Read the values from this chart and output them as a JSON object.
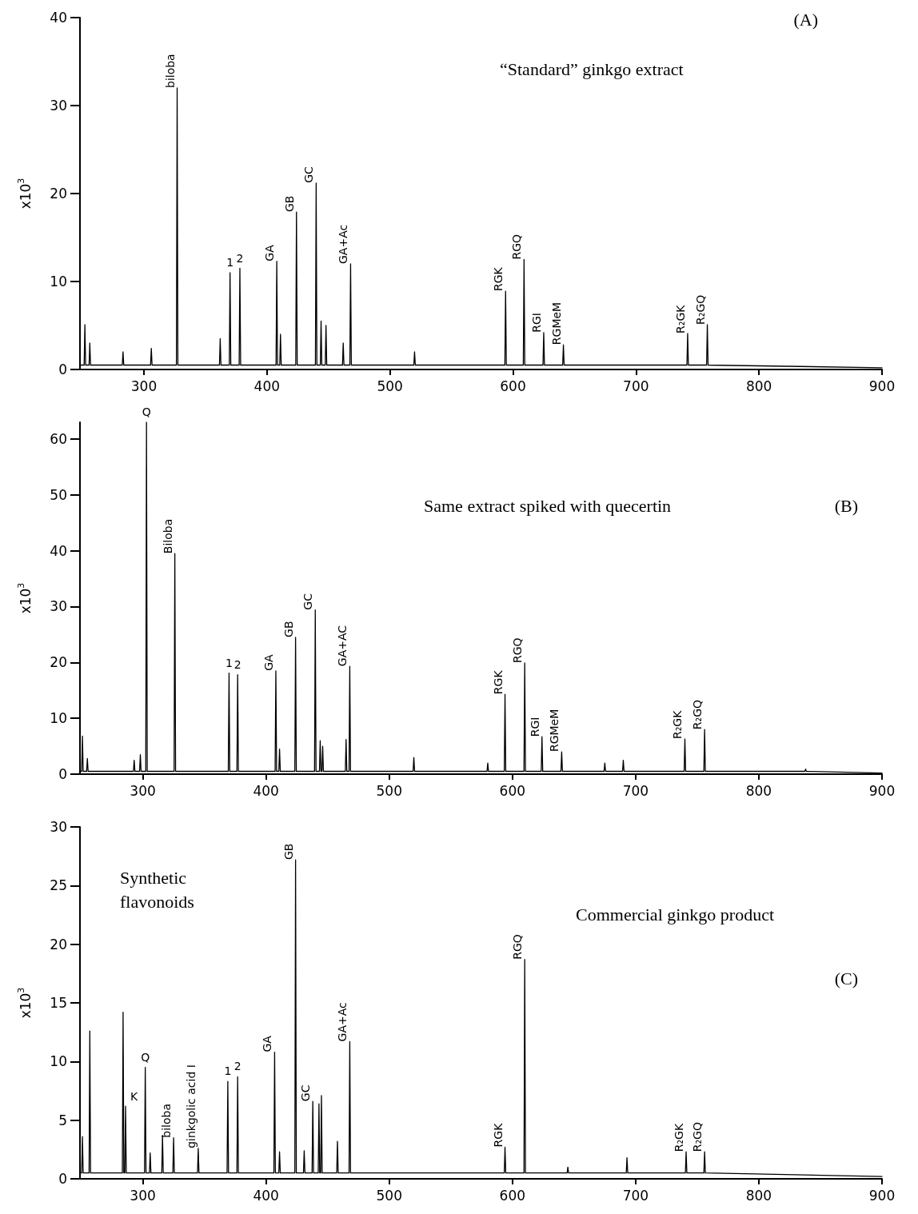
{
  "chart_data": [
    {
      "type": "line",
      "title": "(A)",
      "subtitle": "“Standard” ginkgo extract",
      "ylabel": "x10$^{3}$",
      "xlim": [
        248,
        900
      ],
      "xticks": [
        300,
        400,
        500,
        600,
        700,
        800,
        900
      ],
      "ylim": [
        0,
        40
      ],
      "yticks": [
        0,
        10,
        20,
        30,
        40
      ],
      "grid": false,
      "marker": "none",
      "series": [
        {
          "color": "#000000",
          "x": [
            248,
            251.4,
            252,
            252.6,
            255.4,
            256,
            256.6,
            282.4,
            283,
            283.6,
            305.4,
            306,
            306.6,
            326.4,
            327,
            327.6,
            361.4,
            362,
            362.6,
            369.4,
            370,
            370.6,
            377.4,
            378,
            378.6,
            407.4,
            408,
            408.6,
            410.4,
            411,
            411.6,
            423.4,
            424,
            424.6,
            439.4,
            440,
            440.6,
            443.4,
            444,
            444.6,
            447.4,
            448,
            448.6,
            461.4,
            462,
            462.6,
            467.4,
            468,
            468.6,
            519.4,
            520,
            520.6,
            593.4,
            594,
            594.6,
            608.4,
            609,
            609.6,
            624.4,
            625,
            625.6,
            640.4,
            641,
            641.6,
            741.4,
            742,
            742.6,
            757.4,
            758,
            758.6,
            900
          ],
          "values": [
            0.5,
            0.5,
            5.1,
            0.5,
            0.5,
            3,
            0.5,
            0.5,
            2,
            0.5,
            0.5,
            2.4,
            0.5,
            0.5,
            32,
            0.5,
            0.5,
            3.5,
            0.5,
            0.5,
            11,
            0.5,
            0.5,
            11.5,
            0.5,
            0.5,
            12.3,
            0.5,
            0.5,
            4,
            0.5,
            0.5,
            17.9,
            0.5,
            0.5,
            21.2,
            0.5,
            0.5,
            5.5,
            0.5,
            0.5,
            5,
            0.5,
            0.5,
            3,
            0.5,
            0.5,
            12,
            0.5,
            0.5,
            2,
            0.5,
            0.5,
            8.9,
            0.5,
            0.5,
            12.5,
            0.5,
            0.5,
            4.2,
            0.5,
            0.5,
            2.8,
            0.5,
            0.5,
            4.1,
            0.5,
            0.5,
            5.1,
            0.5,
            0.2
          ]
        }
      ],
      "annotations": [
        {
          "text": "biloba",
          "x": 327,
          "y": 32
        },
        {
          "text": "1",
          "x": 370,
          "y": 11
        },
        {
          "text": "2",
          "x": 378,
          "y": 11.5
        },
        {
          "text": "GA",
          "x": 408,
          "y": 12.3
        },
        {
          "text": "GB",
          "x": 424,
          "y": 17.9
        },
        {
          "text": "GC",
          "x": 440,
          "y": 21.2
        },
        {
          "text": "GA+Ac",
          "x": 468,
          "y": 12
        },
        {
          "text": "RGK",
          "x": 594,
          "y": 8.9
        },
        {
          "text": "RGQ",
          "x": 609,
          "y": 12.5
        },
        {
          "text": "RGI",
          "x": 625,
          "y": 4.2
        },
        {
          "text": "RGMeM",
          "x": 641,
          "y": 2.8
        },
        {
          "text": "R₂GK",
          "x": 742,
          "y": 4.1
        },
        {
          "text": "R₂GQ",
          "x": 758,
          "y": 5.1
        }
      ]
    },
    {
      "type": "line",
      "title": "(B)",
      "subtitle": "Same extract spiked with quecertin",
      "ylabel": "x10$^{3}$",
      "xlim": [
        249,
        900
      ],
      "xticks": [
        300,
        400,
        500,
        600,
        700,
        800,
        900
      ],
      "ylim": [
        0,
        63
      ],
      "yticks": [
        0,
        10,
        20,
        30,
        40,
        50,
        60
      ],
      "grid": false,
      "marker": "none",
      "series": [
        {
          "color": "#000000",
          "x": [
            249,
            250.4,
            251,
            251.6,
            254.4,
            255,
            255.6,
            292.4,
            293,
            293.6,
            297.4,
            298,
            298.6,
            302.4,
            303,
            303.6,
            325.4,
            326,
            326.6,
            369.4,
            370,
            370.6,
            376.4,
            377,
            377.6,
            407.4,
            408,
            408.6,
            410.4,
            411,
            411.6,
            423.4,
            424,
            424.6,
            439.4,
            440,
            440.6,
            443.4,
            444,
            444.6,
            445.4,
            446,
            446.6,
            464.4,
            465,
            465.6,
            467.4,
            468,
            468.6,
            519.4,
            520,
            520.6,
            579.4,
            580,
            580.6,
            593.4,
            594,
            594.6,
            609.4,
            610,
            610.6,
            623.4,
            624,
            624.6,
            639.4,
            640,
            640.6,
            674.4,
            675,
            675.6,
            689.4,
            690,
            690.6,
            739.4,
            740,
            740.6,
            755.4,
            756,
            756.6,
            837.4,
            838,
            838.6,
            900
          ],
          "values": [
            0.5,
            0.5,
            6.8,
            0.5,
            0.5,
            2.8,
            0.5,
            0.5,
            2.5,
            0.5,
            0.5,
            3.5,
            0.5,
            0.5,
            63,
            0.5,
            0.5,
            39.5,
            0.5,
            0.5,
            18.1,
            0.5,
            0.5,
            17.8,
            0.5,
            0.5,
            18.5,
            0.5,
            0.5,
            4.5,
            0.5,
            0.5,
            24.5,
            0.5,
            0.5,
            29.4,
            0.5,
            0.5,
            6,
            0.5,
            0.5,
            5,
            0.5,
            0.5,
            6.2,
            0.5,
            0.5,
            19.3,
            0.5,
            0.5,
            3,
            0.5,
            0.5,
            2,
            0.5,
            0.5,
            14.3,
            0.5,
            0.5,
            19.9,
            0.5,
            0.5,
            6.7,
            0.5,
            0.5,
            4,
            0.5,
            0.5,
            2,
            0.5,
            0.5,
            2.5,
            0.5,
            0.5,
            6.3,
            0.5,
            0.5,
            8,
            0.5,
            0.5,
            0.9,
            0.5,
            0.2
          ]
        }
      ],
      "annotations": [
        {
          "text": "Q",
          "x": 303,
          "y": 63
        },
        {
          "text": "Biloba",
          "x": 326,
          "y": 39.5
        },
        {
          "text": "1",
          "x": 370,
          "y": 18.1
        },
        {
          "text": "2",
          "x": 377,
          "y": 17.8
        },
        {
          "text": "GA",
          "x": 408,
          "y": 18.5
        },
        {
          "text": "GB",
          "x": 424,
          "y": 24.5
        },
        {
          "text": "GC",
          "x": 440,
          "y": 29.4
        },
        {
          "text": "GA+AC",
          "x": 468,
          "y": 19.3
        },
        {
          "text": "RGK",
          "x": 594,
          "y": 14.3
        },
        {
          "text": "RGQ",
          "x": 610,
          "y": 19.9
        },
        {
          "text": "RGI",
          "x": 624,
          "y": 6.7
        },
        {
          "text": "RGMeM",
          "x": 640,
          "y": 4
        },
        {
          "text": "R₂GK",
          "x": 740,
          "y": 6.3
        },
        {
          "text": "R₂GQ",
          "x": 756,
          "y": 8
        }
      ]
    },
    {
      "type": "line",
      "title": "(C)",
      "subtitle": "Commercial ginkgo product",
      "ylabel": "x10$^{3}$",
      "xlim": [
        249,
        900
      ],
      "xticks": [
        300,
        400,
        500,
        600,
        700,
        800,
        900
      ],
      "ylim": [
        0,
        30
      ],
      "yticks": [
        0,
        5,
        10,
        15,
        20,
        25,
        30
      ],
      "grid": false,
      "marker": "none",
      "series": [
        {
          "color": "#000000",
          "x": [
            249,
            250.4,
            251,
            251.6,
            256.4,
            257,
            257.6,
            283.4,
            284,
            284.6,
            285.4,
            286,
            286.6,
            301.4,
            302,
            302.6,
            305.4,
            306,
            306.6,
            315.4,
            316,
            316.6,
            324.4,
            325,
            325.6,
            344.4,
            345,
            345.6,
            368.4,
            369,
            369.6,
            376.4,
            377,
            377.6,
            406.4,
            407,
            407.6,
            410.4,
            411,
            411.6,
            423.4,
            424,
            424.6,
            430.4,
            431,
            431.6,
            437.4,
            438,
            438.6,
            442.4,
            443,
            443.6,
            444.4,
            445,
            445.6,
            457.4,
            458,
            458.6,
            467.4,
            468,
            468.6,
            593.4,
            594,
            594.6,
            609.4,
            610,
            610.6,
            644.4,
            645,
            645.6,
            692.4,
            693,
            693.6,
            740.4,
            741,
            741.6,
            755.4,
            756,
            756.6,
            900
          ],
          "values": [
            0.5,
            0.5,
            3.6,
            0.5,
            0.5,
            12.6,
            0.5,
            0.5,
            14.2,
            0.5,
            0.5,
            6.2,
            0.5,
            0.5,
            9.5,
            0.5,
            0.5,
            2.2,
            0.5,
            0.5,
            3.7,
            0.5,
            0.5,
            3.5,
            0.5,
            0.5,
            2.6,
            0.5,
            0.5,
            8.3,
            0.5,
            0.5,
            8.7,
            0.5,
            0.5,
            10.8,
            0.5,
            0.5,
            2.3,
            0.5,
            0.5,
            27.2,
            0.5,
            0.5,
            2.4,
            0.5,
            0.5,
            6.6,
            0.5,
            0.5,
            6.4,
            0.5,
            0.5,
            7.1,
            0.5,
            0.5,
            3.2,
            0.5,
            0.5,
            11.7,
            0.5,
            0.5,
            2.7,
            0.5,
            0.5,
            18.7,
            0.5,
            0.5,
            1,
            0.5,
            0.5,
            1.8,
            0.5,
            0.5,
            2.3,
            0.5,
            0.5,
            2.3,
            0.5,
            0.2
          ]
        }
      ],
      "annotations": [
        "Synthetic flavonoids",
        {
          "text": "K",
          "x": 286,
          "y": 6.2
        },
        {
          "text": "Q",
          "x": 302,
          "y": 9.5
        },
        {
          "text": "biloba",
          "x": 325,
          "y": 3.5
        },
        {
          "text": "ginkgolic acid I",
          "x": 345,
          "y": 2.6
        },
        {
          "text": "1",
          "x": 369,
          "y": 8.3
        },
        {
          "text": "2",
          "x": 377,
          "y": 8.7
        },
        {
          "text": "GA",
          "x": 407,
          "y": 10.8
        },
        {
          "text": "GB",
          "x": 424,
          "y": 27.2
        },
        {
          "text": "GC",
          "x": 438,
          "y": 6.6
        },
        {
          "text": "GA+Ac",
          "x": 468,
          "y": 11.7
        },
        {
          "text": "RGK",
          "x": 594,
          "y": 2.7
        },
        {
          "text": "RGQ",
          "x": 610,
          "y": 18.7
        },
        {
          "text": "R₂GK",
          "x": 741,
          "y": 2.3
        },
        {
          "text": "R₂GQ",
          "x": 756,
          "y": 2.3
        }
      ]
    }
  ]
}
